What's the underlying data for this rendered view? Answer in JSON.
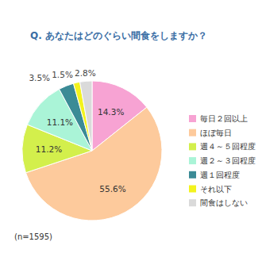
{
  "chart_data": {
    "type": "pie",
    "title": "Q. あなたはどのぐらい間食をしますか？",
    "categories": [
      "毎日２回以上",
      "ほぼ毎日",
      "週４～５回程度",
      "週２～３回程度",
      "週１回程度",
      "それ以下",
      "間食はしない"
    ],
    "values": [
      14.3,
      55.6,
      11.2,
      11.1,
      3.5,
      1.5,
      2.8
    ],
    "value_labels": [
      "14.3%",
      "55.6%",
      "11.2%",
      "11.1%",
      "3.5%",
      "1.5%",
      "2.8%"
    ],
    "colors": [
      "#f7a3d3",
      "#fdca9c",
      "#d3ef4c",
      "#aaf4d7",
      "#3b8b96",
      "#f3f31e",
      "#dadada"
    ],
    "data_labels": true,
    "legend": "right",
    "annotations": [
      "(n=1595)"
    ]
  }
}
